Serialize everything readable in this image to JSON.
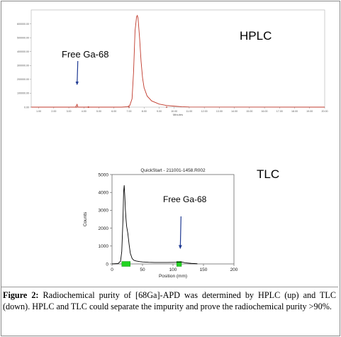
{
  "chart_data": [
    {
      "type": "line",
      "panel_label": "HPLC",
      "xlabel": "Minutes",
      "xlim": [
        0.5,
        20
      ],
      "ylim": [
        0,
        700000
      ],
      "x_ticks": [
        "1.00",
        "2.00",
        "3.00",
        "4.00",
        "5.00",
        "6.00",
        "7.00",
        "8.00",
        "9.00",
        "10.00",
        "11.00",
        "12.00",
        "13.00",
        "14.00",
        "15.00",
        "16.00",
        "17.00",
        "18.00",
        "19.00",
        "20.00"
      ],
      "y_ticks": [
        "0.00",
        "100000.00",
        "200000.00",
        "300000.00",
        "400000.00",
        "500000.00",
        "600000.00"
      ],
      "series": [
        {
          "x": [
            0.5,
            3.0,
            3.45,
            3.55,
            3.6,
            3.7,
            4.0,
            6.5,
            6.9,
            7.05,
            7.2,
            7.3,
            7.4,
            7.5,
            7.55,
            7.6,
            7.7,
            7.8,
            7.9,
            8.0,
            8.2,
            8.5,
            9.0,
            9.5,
            10.0,
            10.5,
            11.0,
            20.0
          ],
          "y": [
            0,
            0,
            0,
            20000,
            0,
            0,
            0,
            0,
            3000,
            12000,
            60000,
            250000,
            550000,
            650000,
            660000,
            640000,
            500000,
            330000,
            210000,
            140000,
            80000,
            45000,
            22000,
            12000,
            7000,
            3000,
            1000,
            0
          ]
        }
      ],
      "annotations": [
        {
          "text": "Free Ga-68",
          "points_to_x": 3.55
        },
        {
          "text": "HPLC"
        }
      ],
      "grid": false
    },
    {
      "type": "line",
      "title": "QuickStart - 211001-1458.R002",
      "xlabel": "Position (mm)",
      "ylabel": "Counts",
      "xlim": [
        0,
        200
      ],
      "ylim": [
        0,
        5000
      ],
      "x_ticks": [
        "0",
        "50",
        "100",
        "150",
        "200"
      ],
      "y_ticks": [
        "0",
        "1000",
        "2000",
        "3000",
        "4000",
        "5000"
      ],
      "series": [
        {
          "x": [
            0,
            10,
            14,
            16,
            18,
            19,
            20,
            21,
            22,
            23,
            24,
            26,
            28,
            30,
            33,
            36,
            40,
            45,
            50,
            60,
            70,
            80,
            90,
            100,
            105,
            110,
            113,
            116,
            120,
            130,
            140
          ],
          "y": [
            0,
            20,
            150,
            700,
            2500,
            4000,
            4400,
            3800,
            3000,
            2500,
            2100,
            1700,
            1100,
            600,
            300,
            200,
            160,
            130,
            110,
            90,
            80,
            80,
            80,
            85,
            90,
            100,
            110,
            95,
            60,
            30,
            10
          ]
        }
      ],
      "regions": [
        [
          16,
          30
        ],
        [
          106,
          114
        ]
      ],
      "annotations": [
        {
          "text": "Free Ga-68",
          "points_to_x": 112
        },
        {
          "text": "TLC"
        }
      ],
      "grid": false
    }
  ],
  "caption": {
    "label": "Figure 2:",
    "text": "Radiochemical purity of [68Ga]-APD was determined by HPLC (up) and TLC (down). HPLC and TLC could separate the impurity and prove the radiochemical purity >90%."
  },
  "colors": {
    "hplc_trace": "#c0392b",
    "tlc_trace": "#000000",
    "roi_fill": "#21d421",
    "arrow": "#1f3a93"
  }
}
